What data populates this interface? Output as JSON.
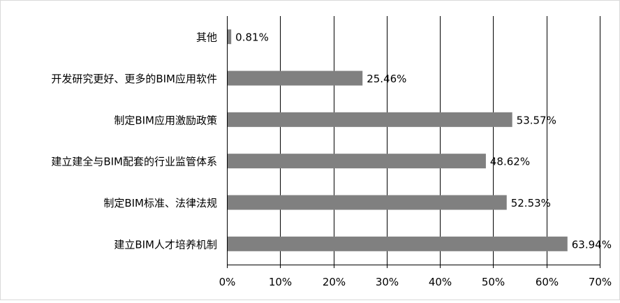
{
  "chart_data": {
    "type": "bar",
    "orientation": "horizontal",
    "categories": [
      "其他",
      "开发研究更好、更多的BIM应用软件",
      "制定BIM应用激励政策",
      "建立建全与BIM配套的行业监管体系",
      "制定BIM标准、法律法规",
      "建立BIM人才培养机制"
    ],
    "values": [
      0.81,
      25.46,
      53.57,
      48.62,
      52.53,
      63.94
    ],
    "data_labels": [
      "0.81%",
      "25.46%",
      "53.57%",
      "48.62%",
      "52.53%",
      "63.94%"
    ],
    "xlim": [
      0,
      70
    ],
    "x_ticks": [
      0,
      10,
      20,
      30,
      40,
      50,
      60,
      70
    ],
    "x_tick_labels": [
      "0%",
      "10%",
      "20%",
      "30%",
      "40%",
      "50%",
      "60%",
      "70%"
    ],
    "grid": "vertical",
    "legend": "none",
    "bar_color": "#808080",
    "grid_color": "#000000"
  }
}
